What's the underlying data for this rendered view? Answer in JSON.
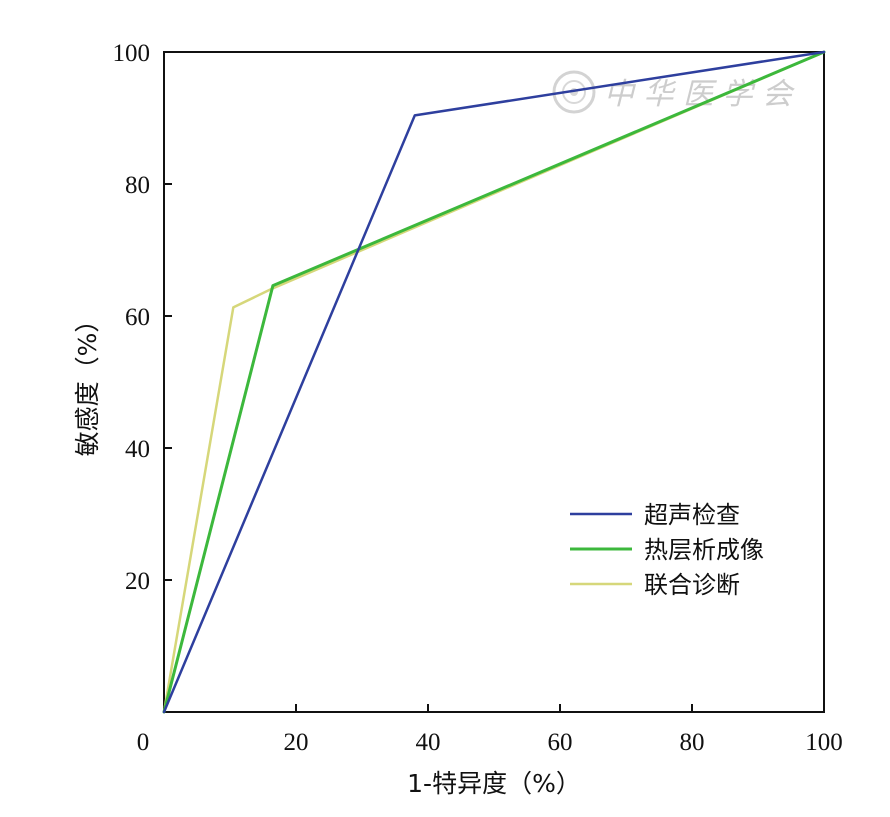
{
  "chart_data": {
    "type": "line",
    "xlabel": "1-特异度（%）",
    "ylabel": "敏感度（%）",
    "xlim": [
      0,
      100
    ],
    "ylim": [
      0,
      100
    ],
    "x_ticks": [
      "20",
      "40",
      "60",
      "80",
      "100"
    ],
    "y_ticks": [
      "20",
      "40",
      "60",
      "80",
      "100"
    ],
    "origin_label": "0",
    "grid": false,
    "legend_position": "bottom-right",
    "series": [
      {
        "name": "超声检查",
        "color": "#2e3f9e",
        "x": [
          0,
          38,
          100
        ],
        "y": [
          0,
          90.4,
          100
        ]
      },
      {
        "name": "热层析成像",
        "color": "#3cb83c",
        "x": [
          0,
          16.5,
          100
        ],
        "y": [
          0,
          64.6,
          100
        ]
      },
      {
        "name": "联合诊断",
        "color": "#d6d77a",
        "x": [
          0,
          10.5,
          16.5,
          100
        ],
        "y": [
          0,
          61.3,
          64.2,
          100
        ]
      }
    ]
  },
  "watermark": {
    "text": "中 华 医 学 会",
    "icon": "society-seal-icon"
  }
}
